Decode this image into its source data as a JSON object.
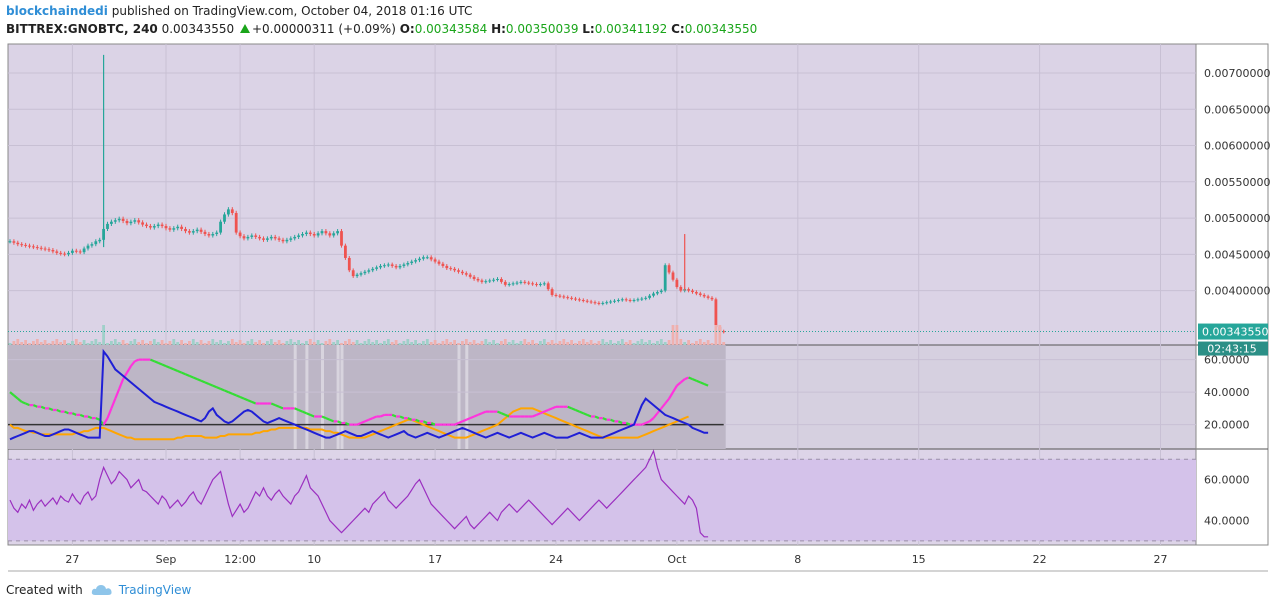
{
  "header": {
    "author": "blockchaindedi",
    "published_text": "published on TradingView.com, October 04, 2018 01:16 UTC",
    "symbol": "BITTREX:GNOBTC, 240",
    "last": "0.00343550",
    "change": "+0.00000311 (+0.09%)",
    "o_label": "O:",
    "o": "0.00343584",
    "h_label": "H:",
    "h": "0.00350039",
    "l_label": "L:",
    "l": "0.00341192",
    "c_label": "C:",
    "c": "0.00343550"
  },
  "footer": {
    "created_with": "Created with",
    "brand": "TradingView"
  },
  "colors": {
    "up": "#26a69a",
    "down": "#ef5350",
    "price_bg": "#dbd3e6",
    "dmi_bg": "#bdb6c6",
    "rsi_bg": "#d4c2ea",
    "adx": "#ffa500",
    "dip": "#1f1fd6",
    "rsi_line": "#9b2fc0",
    "last_badge": "#26a69a"
  },
  "chart_data": [
    {
      "type": "candlestick",
      "title": "",
      "ylim": [
        0.00325,
        0.0074
      ],
      "y_ticks": [
        "0.00700000",
        "0.00650000",
        "0.00600000",
        "0.00550000",
        "0.00500000",
        "0.00450000",
        "0.00400000"
      ],
      "last_price_label": "0.00343550",
      "countdown_label": "02:43:15",
      "x_ticks": [
        "27",
        "Sep",
        "12:00",
        "10",
        "17",
        "24",
        "Oct",
        "8",
        "15",
        "22",
        "27"
      ],
      "x_tick_index": [
        16,
        40,
        59,
        78,
        109,
        140,
        171,
        202,
        233,
        264,
        295
      ],
      "volume_spikes_index": [
        24,
        170,
        171,
        181,
        182
      ],
      "closes": [
        0.00468,
        0.00466,
        0.00464,
        0.00463,
        0.00462,
        0.00461,
        0.0046,
        0.00459,
        0.00458,
        0.00457,
        0.00456,
        0.00454,
        0.00452,
        0.00451,
        0.0045,
        0.00452,
        0.00455,
        0.00454,
        0.00453,
        0.00458,
        0.00462,
        0.00464,
        0.00468,
        0.0047,
        0.00485,
        0.00492,
        0.00495,
        0.00497,
        0.00499,
        0.00496,
        0.00493,
        0.00495,
        0.00497,
        0.00494,
        0.00491,
        0.00489,
        0.00487,
        0.00489,
        0.00491,
        0.00489,
        0.00486,
        0.00484,
        0.00486,
        0.00488,
        0.00485,
        0.00482,
        0.0048,
        0.00482,
        0.00484,
        0.00481,
        0.00478,
        0.00476,
        0.00478,
        0.0048,
        0.00495,
        0.00505,
        0.00512,
        0.00507,
        0.0048,
        0.00475,
        0.00472,
        0.00474,
        0.00476,
        0.00474,
        0.00472,
        0.0047,
        0.00472,
        0.00474,
        0.00472,
        0.0047,
        0.00468,
        0.0047,
        0.00472,
        0.00474,
        0.00476,
        0.00478,
        0.0048,
        0.00478,
        0.00476,
        0.00479,
        0.00482,
        0.00479,
        0.00476,
        0.00479,
        0.00482,
        0.00462,
        0.00445,
        0.00428,
        0.0042,
        0.00422,
        0.00424,
        0.00426,
        0.00428,
        0.0043,
        0.00432,
        0.00434,
        0.00435,
        0.00436,
        0.00434,
        0.00432,
        0.00434,
        0.00436,
        0.00438,
        0.0044,
        0.00442,
        0.00444,
        0.00446,
        0.00446,
        0.00443,
        0.0044,
        0.00437,
        0.00434,
        0.00431,
        0.0043,
        0.00428,
        0.00426,
        0.00424,
        0.00422,
        0.00419,
        0.00416,
        0.00414,
        0.00412,
        0.00413,
        0.00414,
        0.00415,
        0.00416,
        0.00412,
        0.00408,
        0.00409,
        0.0041,
        0.00411,
        0.00412,
        0.00411,
        0.0041,
        0.00409,
        0.00408,
        0.00409,
        0.0041,
        0.00402,
        0.00394,
        0.00393,
        0.00392,
        0.00391,
        0.0039,
        0.00389,
        0.00388,
        0.00387,
        0.00386,
        0.00385,
        0.00384,
        0.00383,
        0.00382,
        0.00383,
        0.00384,
        0.00385,
        0.00386,
        0.00387,
        0.00388,
        0.00387,
        0.00386,
        0.00387,
        0.00388,
        0.00389,
        0.0039,
        0.00393,
        0.00396,
        0.00398,
        0.004,
        0.00435,
        0.00425,
        0.00415,
        0.00405,
        0.004,
        0.00402,
        0.004,
        0.00398,
        0.00396,
        0.00394,
        0.00392,
        0.0039,
        0.00388,
        0.0035,
        0.00344,
        0.00343
      ]
    },
    {
      "type": "line",
      "title": "",
      "ylim": [
        5,
        69
      ],
      "y_ticks": [
        "60.0000",
        "40.0000",
        "20.0000"
      ],
      "level": 20,
      "series": [
        {
          "values": [
            20,
            18,
            18,
            17,
            16,
            16,
            15,
            15,
            14,
            14,
            14,
            14,
            14,
            14,
            14,
            14,
            14,
            15,
            15,
            16,
            16,
            17,
            18,
            18,
            18,
            17,
            16,
            15,
            14,
            13,
            12,
            12,
            11,
            11,
            11,
            11,
            11,
            11,
            11,
            11,
            11,
            11,
            11,
            12,
            12,
            13,
            13,
            13,
            13,
            13,
            12,
            12,
            12,
            12,
            13,
            13,
            14,
            14,
            14,
            14,
            14,
            14,
            14,
            15,
            15,
            16,
            16,
            17,
            17,
            18,
            18,
            18,
            18,
            18,
            18,
            18,
            18,
            17,
            17,
            17,
            17,
            16,
            16,
            15,
            15,
            14,
            13,
            12,
            12,
            12,
            12,
            12,
            13,
            14,
            15,
            16,
            17,
            18,
            19,
            20,
            21,
            22,
            23,
            23,
            22,
            21,
            20,
            19,
            18,
            17,
            16,
            15,
            14,
            13,
            12,
            12,
            12,
            12,
            13,
            14,
            15,
            16,
            17,
            18,
            19,
            20,
            22,
            24,
            26,
            28,
            29,
            30,
            30,
            30,
            30,
            29,
            28,
            27,
            26,
            25,
            24,
            23,
            22,
            21,
            20,
            19,
            18,
            17,
            16,
            15,
            14,
            13,
            12,
            12,
            12,
            12,
            12,
            12,
            12,
            12,
            12,
            12,
            13,
            14,
            15,
            16,
            17,
            18,
            19,
            20,
            21,
            22,
            23,
            24,
            25
          ]
        },
        {
          "values": [
            40,
            38,
            36,
            34,
            33,
            32,
            32,
            31,
            31,
            30,
            30,
            29,
            29,
            28,
            28,
            27,
            27,
            26,
            26,
            25,
            25,
            24,
            24,
            23,
            20,
            24,
            30,
            36,
            42,
            48,
            52,
            56,
            59,
            60,
            60,
            60,
            60,
            59,
            58,
            57,
            56,
            55,
            54,
            53,
            52,
            51,
            50,
            49,
            48,
            47,
            46,
            45,
            44,
            43,
            42,
            41,
            40,
            39,
            38,
            37,
            36,
            35,
            34,
            33,
            33,
            33,
            33,
            33,
            32,
            31,
            30,
            30,
            30,
            30,
            29,
            28,
            27,
            26,
            25,
            25,
            25,
            24,
            23,
            22,
            22,
            21,
            21,
            20,
            20,
            20,
            21,
            22,
            23,
            24,
            25,
            25,
            26,
            26,
            26,
            25,
            25,
            24,
            24,
            23,
            23,
            22,
            22,
            21,
            21,
            20,
            20,
            20,
            20,
            20,
            20,
            21,
            22,
            23,
            24,
            25,
            26,
            27,
            28,
            28,
            28,
            28,
            27,
            26,
            25,
            25,
            25,
            25,
            25,
            25,
            25,
            26,
            27,
            28,
            29,
            30,
            31,
            31,
            31,
            31,
            30,
            29,
            28,
            27,
            26,
            25,
            25,
            24,
            24,
            23,
            23,
            22,
            22,
            21,
            21,
            20,
            20,
            20,
            20,
            21,
            22,
            24,
            27,
            30,
            33,
            36,
            40,
            44,
            46,
            48,
            49,
            48,
            47,
            46,
            45,
            44
          ]
        },
        {
          "values": [
            11,
            12,
            13,
            14,
            15,
            16,
            16,
            15,
            14,
            13,
            13,
            14,
            15,
            16,
            17,
            17,
            16,
            15,
            14,
            13,
            12,
            12,
            12,
            12,
            65,
            62,
            58,
            54,
            52,
            50,
            48,
            46,
            44,
            42,
            40,
            38,
            36,
            34,
            33,
            32,
            31,
            30,
            29,
            28,
            27,
            26,
            25,
            24,
            23,
            22,
            24,
            28,
            30,
            26,
            24,
            22,
            21,
            22,
            24,
            26,
            28,
            29,
            28,
            26,
            24,
            22,
            21,
            22,
            23,
            24,
            23,
            22,
            21,
            20,
            19,
            18,
            17,
            16,
            15,
            14,
            13,
            12,
            12,
            13,
            14,
            15,
            16,
            15,
            14,
            13,
            13,
            14,
            15,
            16,
            15,
            14,
            13,
            12,
            13,
            14,
            15,
            16,
            14,
            13,
            12,
            13,
            14,
            15,
            14,
            13,
            12,
            13,
            14,
            15,
            16,
            17,
            18,
            17,
            16,
            15,
            14,
            13,
            12,
            13,
            14,
            15,
            14,
            13,
            12,
            13,
            14,
            15,
            14,
            13,
            12,
            13,
            14,
            15,
            14,
            13,
            12,
            12,
            12,
            12,
            13,
            14,
            15,
            14,
            13,
            12,
            12,
            12,
            12,
            13,
            14,
            15,
            16,
            17,
            18,
            19,
            20,
            26,
            32,
            36,
            34,
            32,
            30,
            28,
            26,
            25,
            24,
            23,
            22,
            21,
            20,
            18,
            17,
            16,
            15,
            15
          ]
        }
      ]
    },
    {
      "type": "line",
      "title": "",
      "ylim": [
        28,
        75
      ],
      "y_ticks": [
        "60.0000",
        "40.0000"
      ],
      "bands": [
        70,
        30
      ],
      "series": [
        {
          "values": [
            50,
            46,
            44,
            48,
            46,
            50,
            45,
            48,
            50,
            47,
            49,
            51,
            48,
            52,
            50,
            49,
            53,
            50,
            48,
            52,
            54,
            50,
            52,
            60,
            66,
            62,
            58,
            60,
            64,
            62,
            60,
            56,
            58,
            60,
            55,
            54,
            52,
            50,
            48,
            52,
            50,
            46,
            48,
            50,
            47,
            49,
            52,
            54,
            50,
            48,
            52,
            56,
            60,
            62,
            64,
            56,
            48,
            42,
            45,
            48,
            44,
            46,
            50,
            54,
            52,
            56,
            52,
            50,
            53,
            55,
            52,
            50,
            48,
            52,
            54,
            58,
            62,
            56,
            54,
            52,
            48,
            44,
            40,
            38,
            36,
            34,
            36,
            38,
            40,
            42,
            44,
            46,
            44,
            48,
            50,
            52,
            54,
            50,
            48,
            46,
            48,
            50,
            52,
            55,
            58,
            60,
            56,
            52,
            48,
            46,
            44,
            42,
            40,
            38,
            36,
            38,
            40,
            42,
            38,
            36,
            38,
            40,
            42,
            44,
            42,
            40,
            44,
            46,
            48,
            46,
            44,
            46,
            48,
            50,
            48,
            46,
            44,
            42,
            40,
            38,
            40,
            42,
            44,
            46,
            44,
            42,
            40,
            42,
            44,
            46,
            48,
            50,
            48,
            46,
            48,
            50,
            52,
            54,
            56,
            58,
            60,
            62,
            64,
            66,
            70,
            74,
            66,
            60,
            58,
            56,
            54,
            52,
            50,
            48,
            52,
            50,
            46,
            34,
            32,
            32
          ]
        }
      ]
    }
  ]
}
